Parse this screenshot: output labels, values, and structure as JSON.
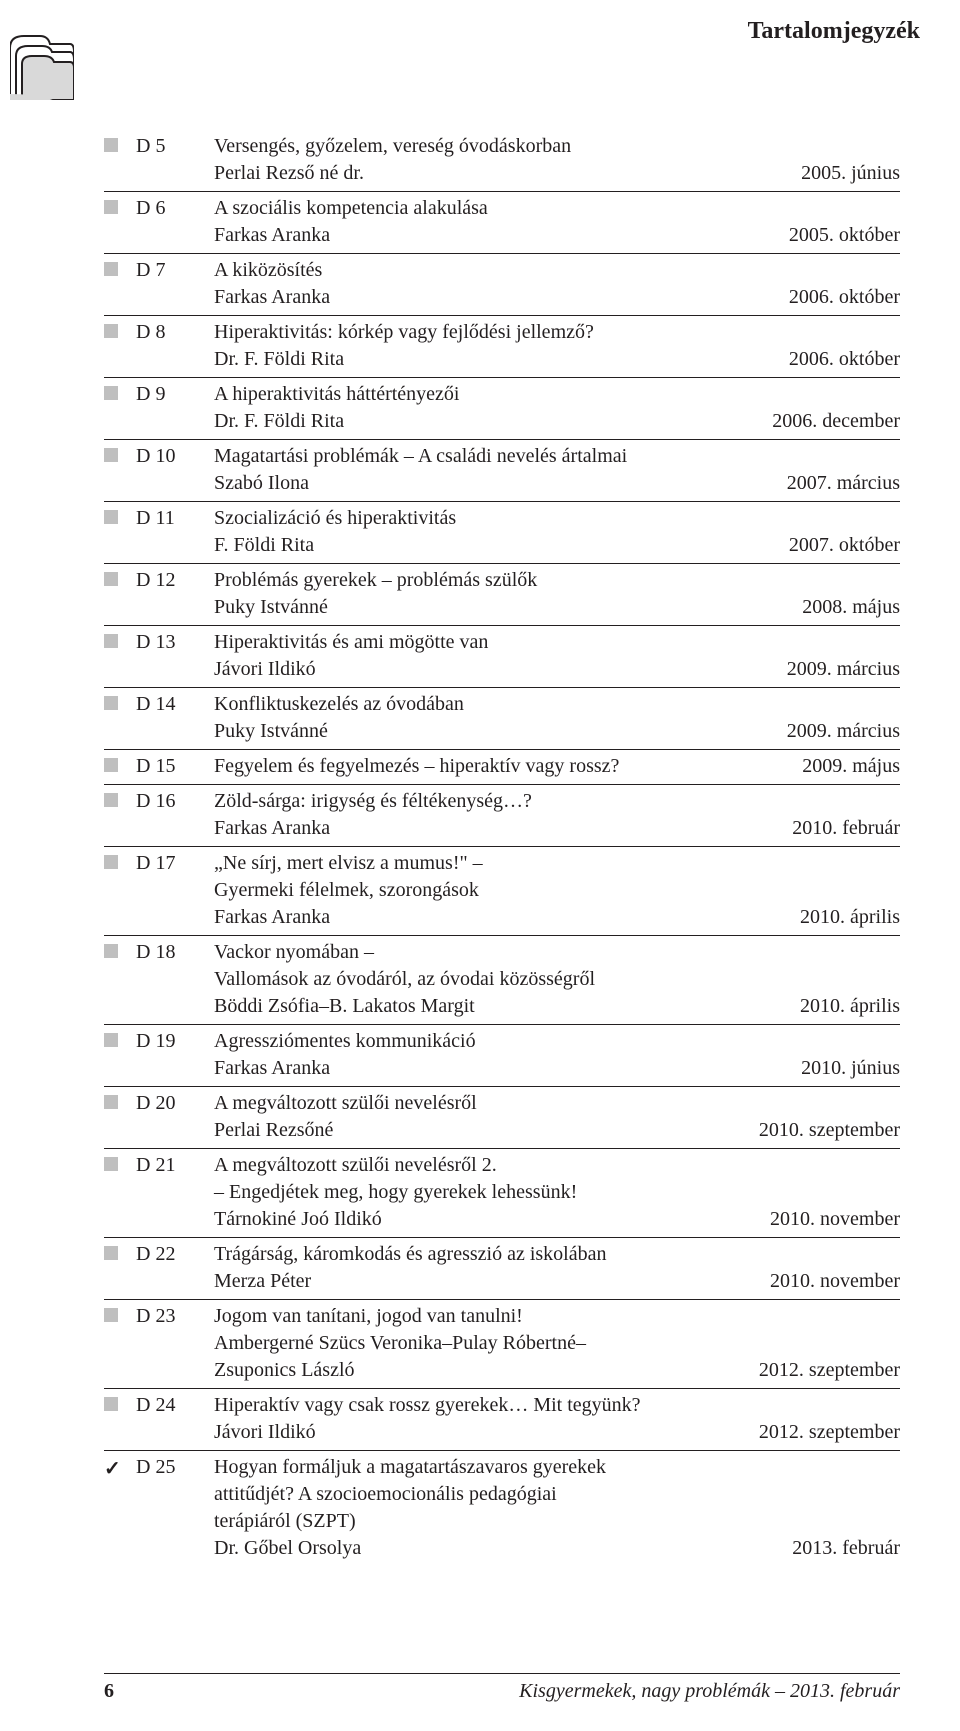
{
  "header_title": "Tartalomjegyzék",
  "footer": {
    "page_number": "6",
    "text": "Kisgyermekek, nagy problémák – 2013. február"
  },
  "colors": {
    "marker_gray": "#bfbfbf",
    "rule": "#231f20",
    "text": "#231f20"
  },
  "entries": [
    {
      "marker": "square",
      "code": "D 5",
      "title": "Versengés, győzelem, vereség óvodáskorban",
      "author": "Perlai Rezső né dr.",
      "date": "2005. június"
    },
    {
      "marker": "square",
      "code": "D 6",
      "title": "A szociális kompetencia alakulása",
      "author": "Farkas Aranka",
      "date": "2005. október"
    },
    {
      "marker": "square",
      "code": "D 7",
      "title": "A kiközösítés",
      "author": "Farkas Aranka",
      "date": "2006. október"
    },
    {
      "marker": "square",
      "code": "D 8",
      "title": "Hiperaktivitás: kórkép vagy fejlődési jellemző?",
      "author": "Dr. F. Földi Rita",
      "date": "2006. október"
    },
    {
      "marker": "square",
      "code": "D 9",
      "title": "A hiperaktivitás háttértényezői",
      "author": "Dr. F. Földi Rita",
      "date": "2006. december"
    },
    {
      "marker": "square",
      "code": "D 10",
      "title": "Magatartási problémák – A családi nevelés ártalmai",
      "author": "Szabó Ilona",
      "date": "2007. március"
    },
    {
      "marker": "square",
      "code": "D 11",
      "title": "Szocializáció és hiperaktivitás",
      "author": "F. Földi Rita",
      "date": "2007. október"
    },
    {
      "marker": "square",
      "code": "D 12",
      "title": "Problémás gyerekek – problémás szülők",
      "author": "Puky Istvánné",
      "date": "2008. május"
    },
    {
      "marker": "square",
      "code": "D 13",
      "title": "Hiperaktivitás és ami mögötte van",
      "author": "Jávori Ildikó",
      "date": "2009. március"
    },
    {
      "marker": "square",
      "code": "D 14",
      "title": "Konfliktuskezelés az óvodában",
      "author": "Puky Istvánné",
      "date": "2009. március"
    },
    {
      "marker": "square",
      "code": "D 15",
      "title_inline": true,
      "title": "Fegyelem és fegyelmezés – hiperaktív vagy rossz?",
      "date": "2009. május"
    },
    {
      "marker": "square",
      "code": "D 16",
      "title": "Zöld-sárga: irigység és féltékenység…?",
      "author": "Farkas Aranka",
      "date": "2010. február"
    },
    {
      "marker": "square",
      "code": "D 17",
      "title": "„Ne sírj, mert elvisz a mumus!\" –\nGyermeki félelmek, szorongások",
      "author": "Farkas Aranka",
      "date": "2010. április"
    },
    {
      "marker": "square",
      "code": "D 18",
      "title": "Vackor nyomában –\nVallomások az óvodáról, az óvodai közösségről",
      "author": "Böddi Zsófia–B. Lakatos Margit",
      "date": "2010. április"
    },
    {
      "marker": "square",
      "code": "D 19",
      "title": "Agressziómentes kommunikáció",
      "author": "Farkas Aranka",
      "date": "2010. június"
    },
    {
      "marker": "square",
      "code": "D 20",
      "title": "A megváltozott szülői nevelésről",
      "author": "Perlai Rezsőné",
      "date": "2010. szeptember"
    },
    {
      "marker": "square",
      "code": "D 21",
      "title": "A megváltozott szülői nevelésről 2.\n– Engedjétek meg, hogy gyerekek lehessünk!",
      "author": "Tárnokiné Joó Ildikó",
      "date": "2010. november"
    },
    {
      "marker": "square",
      "code": "D 22",
      "title": "Trágárság, káromkodás és agresszió az iskolában",
      "author": "Merza Péter",
      "date": "2010. november"
    },
    {
      "marker": "square",
      "code": "D 23",
      "title": "Jogom van tanítani, jogod van tanulni!",
      "author": "Ambergerné Szücs Veronika–Pulay Róbertné–\nZsuponics László",
      "date": "2012. szeptember"
    },
    {
      "marker": "square",
      "code": "D 24",
      "title": "Hiperaktív vagy csak rossz gyerekek… Mit tegyünk?",
      "author": "Jávori Ildikó",
      "date": "2012. szeptember"
    },
    {
      "marker": "check",
      "code": "D 25",
      "title": "Hogyan formáljuk a magatartászavaros gyerekek\nattitűdjét? A szocioemocionális pedagógiai\nterápiáról (SZPT)",
      "author": "Dr. Gőbel Orsolya",
      "date": "2013. február",
      "last": true
    }
  ]
}
